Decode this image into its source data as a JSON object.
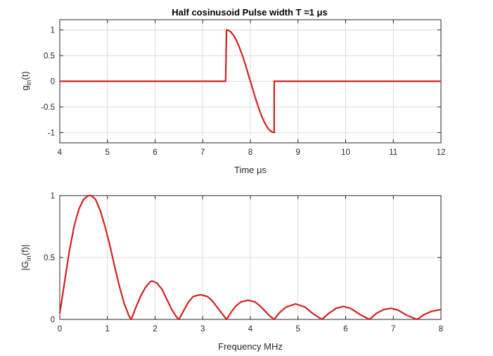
{
  "chart_data": [
    {
      "type": "line",
      "title": "Half cosinusoid Pulse width T =1 μs",
      "xlabel": "Time μs",
      "ylabel": "g_in(t)",
      "ylabel_main": "g",
      "ylabel_sub": "in",
      "ylabel_tail": "(t)",
      "xlim": [
        4,
        12
      ],
      "ylim": [
        -1.2,
        1.2
      ],
      "xticks": [
        4,
        5,
        6,
        7,
        8,
        9,
        10,
        11,
        12
      ],
      "yticks": [
        1,
        0.5,
        0,
        -0.5,
        -1
      ],
      "ytick_labels": [
        "1",
        "0.5",
        "0",
        "-0.5",
        "-1"
      ],
      "grid": true,
      "series": [
        {
          "color": "#d42020",
          "x": [
            4,
            7.48,
            7.5,
            7.55,
            7.6,
            7.65,
            7.7,
            7.75,
            7.8,
            7.85,
            7.9,
            7.95,
            8.0,
            8.05,
            8.1,
            8.15,
            8.2,
            8.25,
            8.3,
            8.35,
            8.4,
            8.45,
            8.5,
            8.5,
            12
          ],
          "y": [
            0,
            0,
            1.0,
            0.988,
            0.951,
            0.891,
            0.809,
            0.707,
            0.588,
            0.454,
            0.309,
            0.156,
            0.0,
            -0.156,
            -0.309,
            -0.454,
            -0.588,
            -0.707,
            -0.809,
            -0.891,
            -0.951,
            -0.988,
            -1.0,
            0,
            0
          ]
        }
      ]
    },
    {
      "type": "line",
      "title": "",
      "xlabel": "Frequency MHz",
      "ylabel": "|G_in(f)|",
      "ylabel_main": "|G",
      "ylabel_sub": "in",
      "ylabel_tail": "(f)|",
      "xlim": [
        0,
        8
      ],
      "ylim": [
        0,
        1
      ],
      "xticks": [
        0,
        1,
        2,
        3,
        4,
        5,
        6,
        7,
        8
      ],
      "yticks": [
        1,
        0.5,
        0
      ],
      "ytick_labels": [
        "1",
        "0.5",
        "0"
      ],
      "grid": true,
      "series": [
        {
          "color": "#d42020",
          "x": [
            0,
            0.1,
            0.2,
            0.3,
            0.4,
            0.5,
            0.6,
            0.66,
            0.75,
            0.85,
            0.95,
            1.05,
            1.15,
            1.25,
            1.35,
            1.45,
            1.5,
            1.6,
            1.7,
            1.8,
            1.9,
            1.95,
            2.05,
            2.15,
            2.25,
            2.35,
            2.45,
            2.5,
            2.6,
            2.7,
            2.8,
            2.95,
            3.1,
            3.2,
            3.3,
            3.4,
            3.5,
            3.6,
            3.7,
            3.8,
            3.95,
            4.1,
            4.2,
            4.3,
            4.4,
            4.5,
            4.6,
            4.75,
            4.95,
            5.15,
            5.3,
            5.5,
            5.65,
            5.8,
            5.95,
            6.1,
            6.3,
            6.5,
            6.65,
            6.8,
            6.95,
            7.1,
            7.3,
            7.5,
            7.65,
            7.8,
            8.0
          ],
          "y": [
            0.05,
            0.3,
            0.55,
            0.75,
            0.89,
            0.97,
            1.0,
            1.0,
            0.97,
            0.88,
            0.75,
            0.6,
            0.43,
            0.27,
            0.13,
            0.03,
            0.0,
            0.1,
            0.19,
            0.26,
            0.305,
            0.31,
            0.29,
            0.24,
            0.16,
            0.08,
            0.02,
            0.0,
            0.07,
            0.14,
            0.185,
            0.2,
            0.185,
            0.15,
            0.1,
            0.05,
            0.0,
            0.06,
            0.11,
            0.14,
            0.155,
            0.14,
            0.11,
            0.07,
            0.03,
            0.0,
            0.05,
            0.1,
            0.125,
            0.1,
            0.05,
            0.0,
            0.05,
            0.09,
            0.105,
            0.09,
            0.04,
            0.0,
            0.05,
            0.08,
            0.09,
            0.075,
            0.03,
            0.0,
            0.04,
            0.065,
            0.08
          ]
        }
      ]
    }
  ]
}
